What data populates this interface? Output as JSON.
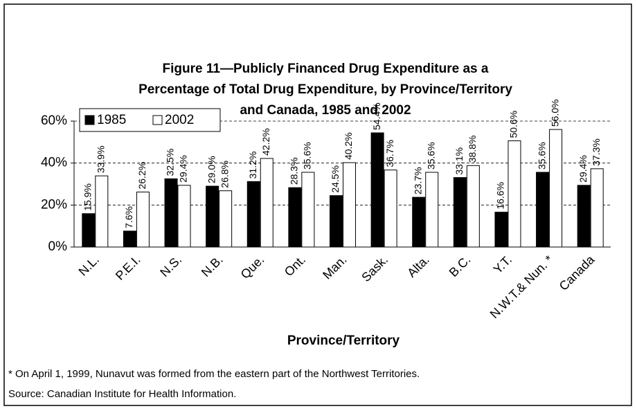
{
  "chart_data": {
    "type": "bar",
    "title": [
      "Figure 11—Publicly Financed Drug Expenditure as a",
      "Percentage of Total Drug Expenditure, by Province/Territory",
      "and Canada, 1985 and 2002"
    ],
    "x_label": "Province/Territory",
    "categories": [
      "N.L.",
      "P.E.I.",
      "N.S.",
      "N.B.",
      "Que.",
      "Ont.",
      "Man.",
      "Sask.",
      "Alta.",
      "B.C.",
      "Y.T.",
      "N.W.T.& Nun. *",
      "Canada"
    ],
    "series": [
      {
        "name": "1985",
        "color": "#000000",
        "values": [
          15.9,
          7.6,
          32.5,
          29.0,
          31.2,
          28.3,
          24.5,
          54.4,
          23.7,
          33.1,
          16.6,
          35.6,
          29.4
        ],
        "value_labels": [
          "15.9%",
          "7.6%",
          "32.5%",
          "29.0%",
          "31.2%",
          "28.3%",
          "24.5%",
          "54.4%",
          "23.7%",
          "33.1%",
          "16.6%",
          "35.6%",
          "29.4%"
        ]
      },
      {
        "name": "2002",
        "color": "#ffffff",
        "values": [
          33.9,
          26.2,
          29.4,
          26.8,
          42.2,
          35.6,
          40.2,
          36.7,
          35.6,
          38.8,
          50.6,
          56.0,
          37.3
        ],
        "value_labels": [
          "33.9%",
          "26.2%",
          "29.4%",
          "26.8%",
          "42.2%",
          "35.6%",
          "40.2%",
          "36.7%",
          "35.6%",
          "38.8%",
          "50.6%",
          "56.0%",
          "37.3%"
        ]
      }
    ],
    "ylim": [
      0,
      60
    ],
    "yticks": [
      {
        "value": 0,
        "label": "0%"
      },
      {
        "value": 20,
        "label": "20%"
      },
      {
        "value": 40,
        "label": "40%"
      },
      {
        "value": 60,
        "label": "60%"
      }
    ],
    "grid": true,
    "legend": "upper left",
    "footnotes": [
      "* On April 1, 1999, Nunavut was formed from the eastern part of the Northwest Territories.",
      "Source: Canadian Institute for Health Information."
    ]
  }
}
